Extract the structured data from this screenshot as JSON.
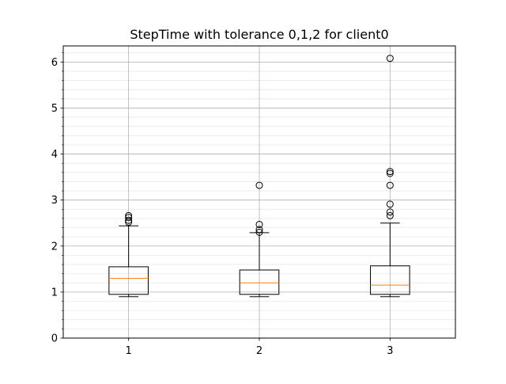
{
  "chart_data": {
    "type": "box",
    "title": "StepTime with tolerance 0,1,2 for client0",
    "xlabel": "",
    "ylabel": "",
    "categories": [
      "1",
      "2",
      "3"
    ],
    "ylim": [
      0,
      6.35
    ],
    "yticks": [
      0,
      1,
      2,
      3,
      4,
      5,
      6
    ],
    "ytick_labels": [
      "0",
      "1",
      "2",
      "3",
      "4",
      "5",
      "6"
    ],
    "grid": "on",
    "boxes": [
      {
        "label": "1",
        "whisker_low": 0.9,
        "q1": 0.95,
        "median": 1.3,
        "q3": 1.55,
        "whisker_high": 2.44,
        "outliers": [
          2.52,
          2.56,
          2.62,
          2.66
        ]
      },
      {
        "label": "2",
        "whisker_low": 0.9,
        "q1": 0.95,
        "median": 1.2,
        "q3": 1.48,
        "whisker_high": 2.29,
        "outliers": [
          2.3,
          2.36,
          2.47,
          3.32
        ]
      },
      {
        "label": "3",
        "whisker_low": 0.9,
        "q1": 0.95,
        "median": 1.15,
        "q3": 1.57,
        "whisker_high": 2.5,
        "outliers": [
          2.66,
          2.74,
          2.91,
          3.32,
          3.58,
          3.62,
          6.08
        ]
      }
    ],
    "colors": {
      "box": "#000000",
      "median": "#ff7f0e",
      "grid_major": "#b0b0b0",
      "grid_minor": "#e8e8e8",
      "background": "#ffffff"
    }
  }
}
